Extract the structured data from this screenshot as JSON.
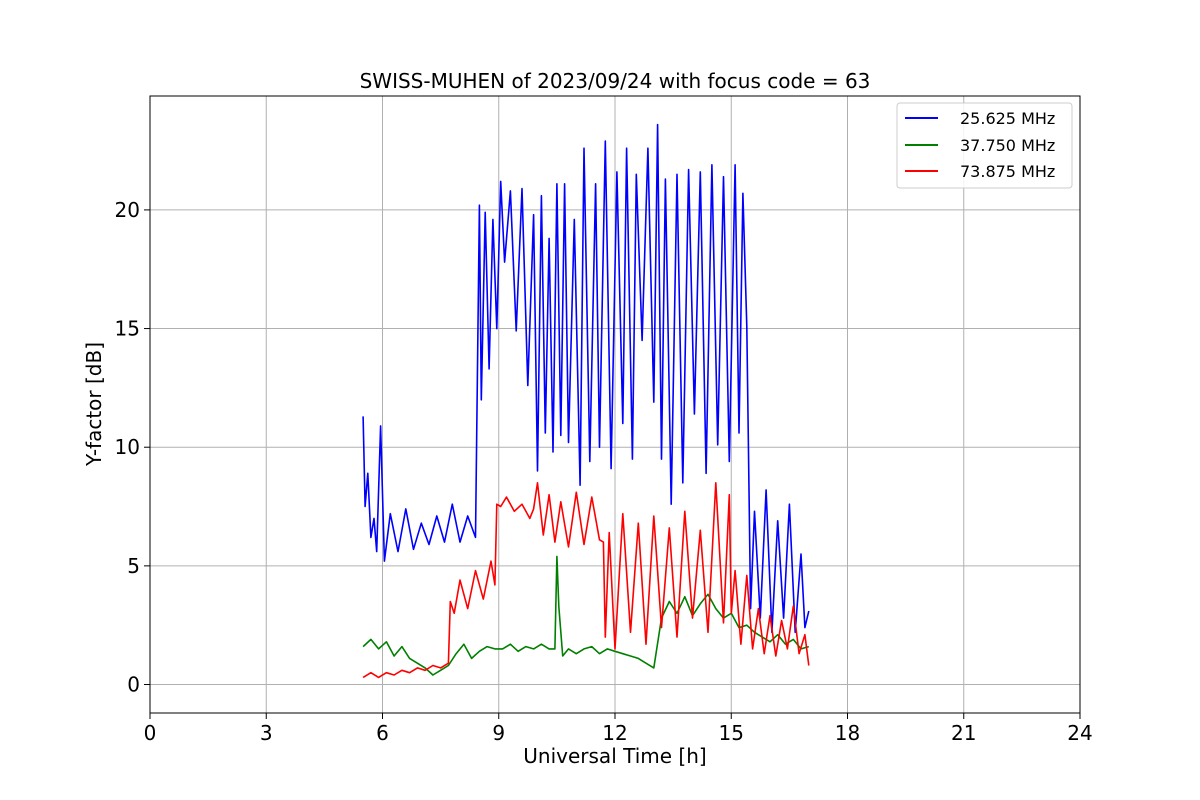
{
  "chart_data": {
    "type": "line",
    "title": "SWISS-MUHEN of 2023/09/24 with focus code = 63",
    "xlabel": "Universal Time [h]",
    "ylabel": "Y-factor [dB]",
    "xlim": [
      0,
      24
    ],
    "ylim": [
      -1.2,
      24.8
    ],
    "xticks": [
      0,
      3,
      6,
      9,
      12,
      15,
      18,
      21,
      24
    ],
    "yticks": [
      0,
      5,
      10,
      15,
      20
    ],
    "grid": true,
    "legend_position": "top-right",
    "series": [
      {
        "name": "25.625 MHz",
        "color": "#0000ff",
        "x": [
          5.5,
          5.55,
          5.62,
          5.7,
          5.78,
          5.85,
          5.95,
          6.05,
          6.2,
          6.4,
          6.6,
          6.8,
          7.0,
          7.2,
          7.4,
          7.6,
          7.8,
          8.0,
          8.2,
          8.4,
          8.5,
          8.55,
          8.65,
          8.75,
          8.85,
          8.95,
          9.05,
          9.15,
          9.3,
          9.45,
          9.6,
          9.75,
          9.9,
          10.0,
          10.1,
          10.2,
          10.3,
          10.4,
          10.5,
          10.6,
          10.7,
          10.8,
          10.95,
          11.1,
          11.2,
          11.35,
          11.5,
          11.6,
          11.75,
          11.9,
          12.05,
          12.2,
          12.3,
          12.45,
          12.55,
          12.7,
          12.85,
          13.0,
          13.1,
          13.2,
          13.3,
          13.45,
          13.6,
          13.75,
          13.9,
          14.05,
          14.2,
          14.35,
          14.5,
          14.65,
          14.8,
          14.95,
          15.1,
          15.2,
          15.3,
          15.4,
          15.5,
          15.6,
          15.75,
          15.9,
          16.05,
          16.2,
          16.35,
          16.5,
          16.65,
          16.8,
          16.9,
          17.0
        ],
        "y": [
          11.3,
          7.5,
          8.9,
          6.2,
          7.0,
          5.6,
          10.9,
          5.2,
          7.2,
          5.6,
          7.4,
          5.7,
          6.8,
          5.9,
          7.1,
          6.0,
          7.6,
          6.0,
          7.1,
          6.2,
          20.2,
          12.0,
          19.9,
          13.3,
          19.6,
          15.0,
          21.2,
          17.8,
          20.8,
          14.9,
          20.9,
          12.6,
          19.8,
          9.0,
          20.6,
          10.6,
          18.8,
          9.8,
          21.1,
          10.5,
          21.1,
          10.2,
          19.6,
          8.4,
          22.6,
          9.4,
          21.1,
          10.0,
          22.9,
          9.1,
          21.6,
          11.0,
          22.6,
          9.5,
          21.5,
          14.5,
          22.6,
          11.9,
          23.6,
          9.5,
          21.3,
          7.6,
          21.5,
          8.5,
          21.7,
          11.4,
          21.6,
          8.9,
          21.9,
          10.1,
          21.4,
          9.4,
          21.9,
          10.6,
          20.7,
          15.1,
          3.2,
          7.3,
          2.8,
          8.2,
          2.2,
          6.9,
          2.8,
          7.6,
          2.2,
          5.5,
          2.4,
          3.1
        ]
      },
      {
        "name": "37.750 MHz",
        "color": "#008000",
        "x": [
          5.5,
          5.7,
          5.9,
          6.1,
          6.3,
          6.5,
          6.7,
          6.9,
          7.1,
          7.3,
          7.5,
          7.7,
          7.9,
          8.1,
          8.3,
          8.5,
          8.7,
          8.9,
          9.1,
          9.3,
          9.5,
          9.7,
          9.9,
          10.1,
          10.3,
          10.45,
          10.5,
          10.55,
          10.65,
          10.8,
          11.0,
          11.2,
          11.4,
          11.6,
          11.8,
          12.0,
          12.2,
          12.4,
          12.6,
          12.8,
          13.0,
          13.2,
          13.4,
          13.6,
          13.8,
          14.0,
          14.2,
          14.4,
          14.6,
          14.8,
          15.0,
          15.2,
          15.4,
          15.6,
          15.8,
          16.0,
          16.2,
          16.4,
          16.6,
          16.8,
          17.0
        ],
        "y": [
          1.6,
          1.9,
          1.5,
          1.8,
          1.2,
          1.6,
          1.1,
          0.9,
          0.7,
          0.4,
          0.6,
          0.8,
          1.3,
          1.7,
          1.1,
          1.4,
          1.6,
          1.5,
          1.5,
          1.7,
          1.4,
          1.6,
          1.5,
          1.7,
          1.5,
          1.5,
          5.4,
          3.3,
          1.2,
          1.5,
          1.3,
          1.5,
          1.6,
          1.3,
          1.5,
          1.4,
          1.3,
          1.2,
          1.1,
          0.9,
          0.7,
          2.8,
          3.5,
          3.0,
          3.7,
          2.9,
          3.4,
          3.8,
          3.2,
          2.8,
          3.0,
          2.4,
          2.5,
          2.2,
          2.0,
          1.8,
          2.1,
          1.7,
          1.9,
          1.5,
          1.6
        ]
      },
      {
        "name": "73.875 MHz",
        "color": "#ff0000",
        "x": [
          5.5,
          5.7,
          5.9,
          6.1,
          6.3,
          6.5,
          6.7,
          6.9,
          7.1,
          7.3,
          7.5,
          7.7,
          7.75,
          7.85,
          8.0,
          8.2,
          8.4,
          8.6,
          8.8,
          8.9,
          8.95,
          9.05,
          9.2,
          9.4,
          9.6,
          9.8,
          9.9,
          10.0,
          10.15,
          10.3,
          10.45,
          10.6,
          10.8,
          11.0,
          11.2,
          11.4,
          11.6,
          11.7,
          11.75,
          11.85,
          12.0,
          12.2,
          12.4,
          12.6,
          12.8,
          13.0,
          13.2,
          13.4,
          13.6,
          13.8,
          14.0,
          14.2,
          14.4,
          14.6,
          14.8,
          14.95,
          15.0,
          15.1,
          15.25,
          15.4,
          15.55,
          15.7,
          15.85,
          16.0,
          16.15,
          16.3,
          16.45,
          16.6,
          16.75,
          16.9,
          17.0
        ],
        "y": [
          0.3,
          0.5,
          0.3,
          0.5,
          0.4,
          0.6,
          0.5,
          0.7,
          0.6,
          0.8,
          0.7,
          0.9,
          3.5,
          3.0,
          4.4,
          3.2,
          4.8,
          3.6,
          5.2,
          4.2,
          7.6,
          7.5,
          7.9,
          7.3,
          7.6,
          7.0,
          7.4,
          8.5,
          6.3,
          8.0,
          6.0,
          7.7,
          5.8,
          8.1,
          5.9,
          7.9,
          6.1,
          6.0,
          2.0,
          6.4,
          1.5,
          7.2,
          2.2,
          6.8,
          1.7,
          7.1,
          2.4,
          6.6,
          2.0,
          7.3,
          2.8,
          6.5,
          2.2,
          8.5,
          2.6,
          8.0,
          3.0,
          4.8,
          1.7,
          4.6,
          1.5,
          3.2,
          1.3,
          2.9,
          1.2,
          2.7,
          1.5,
          3.3,
          1.3,
          2.1,
          0.8
        ]
      }
    ]
  }
}
